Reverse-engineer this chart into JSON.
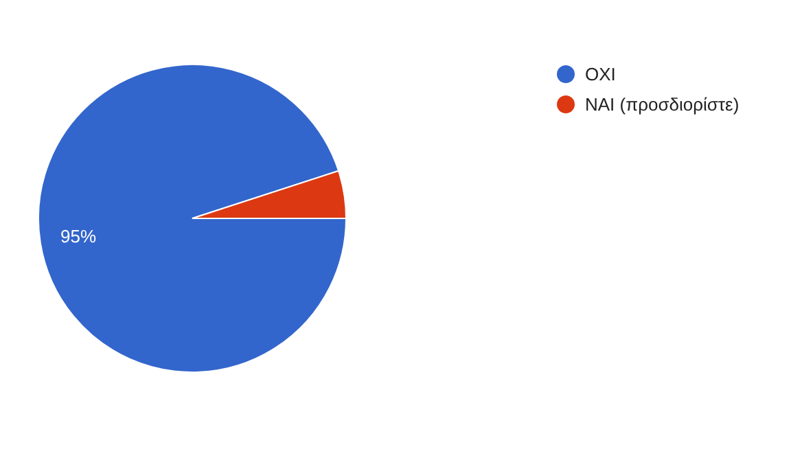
{
  "chart_data": {
    "type": "pie",
    "categories": [
      "OXI",
      "NAI (προσδιορίστε)"
    ],
    "values": [
      95,
      5
    ],
    "colors": [
      "#3366cc",
      "#dc3912"
    ],
    "value_labels": [
      "95%",
      null
    ],
    "legend": "right"
  }
}
